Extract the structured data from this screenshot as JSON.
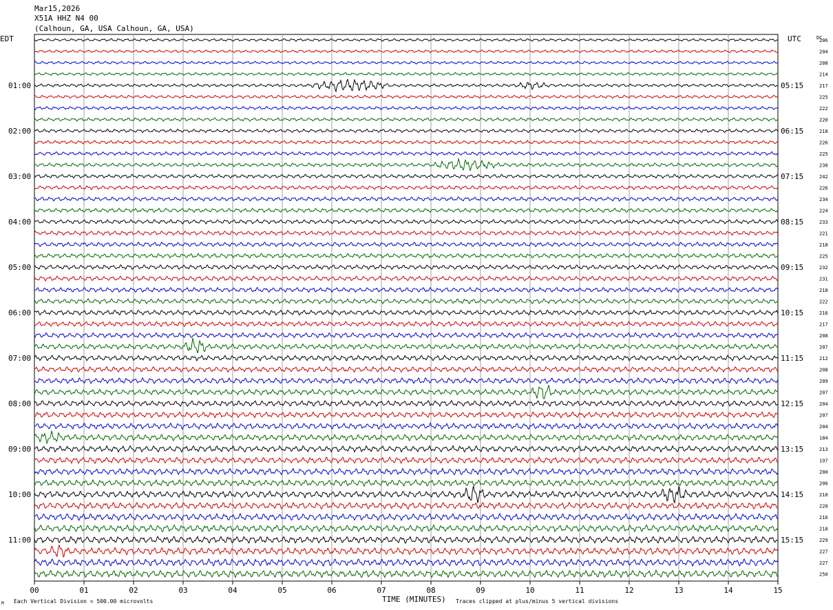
{
  "header": {
    "date": "Mar15,2026",
    "channel": "X51A HHZ N4 00",
    "location": "(Calhoun, GA, USA Calhoun, GA, USA)"
  },
  "left_zone": "EDT",
  "right_zone": "UTC",
  "dc_label": "DC",
  "footer": {
    "scale_note": "Each Vertical Division =  500.00 microvolts",
    "clip_note": "Traces clipped at plus/minus 5 vertical divisions",
    "corner_mark": "M"
  },
  "colors": {
    "trace_cycle": [
      "#000000",
      "#cc0000",
      "#0000cc",
      "#006600"
    ],
    "grid": "#888888"
  },
  "chart_data": {
    "type": "line",
    "title": "X51A HHZ N4 00",
    "xlabel": "TIME (MINUTES)",
    "ylabel": "",
    "x_ticks": [
      "00",
      "01",
      "02",
      "03",
      "04",
      "05",
      "06",
      "07",
      "08",
      "09",
      "10",
      "11",
      "12",
      "13",
      "14",
      "15"
    ],
    "xlim": [
      0,
      15
    ],
    "row_minutes": 15,
    "left_hour_labels": [
      "01:00",
      "02:00",
      "03:00",
      "04:00",
      "05:00",
      "06:00",
      "07:00",
      "08:00",
      "09:00",
      "10:00",
      "11:00"
    ],
    "right_hour_labels": [
      "05:15",
      "06:15",
      "07:15",
      "08:15",
      "09:15",
      "10:15",
      "11:15",
      "12:15",
      "13:15",
      "14:15",
      "15:15"
    ],
    "dc_offsets": [
      206,
      204,
      208,
      214,
      217,
      225,
      222,
      220,
      218,
      226,
      225,
      230,
      242,
      226,
      234,
      224,
      233,
      221,
      218,
      225,
      232,
      231,
      218,
      222,
      216,
      217,
      208,
      207,
      212,
      208,
      209,
      207,
      204,
      207,
      204,
      184,
      213,
      197,
      200,
      206,
      210,
      220,
      216,
      218,
      229,
      227,
      227,
      250
    ],
    "events": [
      {
        "row": 4,
        "start_min": 5.5,
        "end_min": 7.2,
        "amp": 8
      },
      {
        "row": 4,
        "start_min": 9.7,
        "end_min": 10.4,
        "amp": 4
      },
      {
        "row": 11,
        "start_min": 8.0,
        "end_min": 9.4,
        "amp": 7
      },
      {
        "row": 27,
        "start_min": 3.0,
        "end_min": 3.5,
        "amp": 10
      },
      {
        "row": 31,
        "start_min": 10.0,
        "end_min": 10.5,
        "amp": 10
      },
      {
        "row": 35,
        "start_min": 0.0,
        "end_min": 0.6,
        "amp": 6
      },
      {
        "row": 40,
        "start_min": 8.6,
        "end_min": 9.1,
        "amp": 11
      },
      {
        "row": 40,
        "start_min": 12.6,
        "end_min": 13.2,
        "amp": 10
      },
      {
        "row": 45,
        "start_min": 0.3,
        "end_min": 0.7,
        "amp": 7
      }
    ]
  }
}
